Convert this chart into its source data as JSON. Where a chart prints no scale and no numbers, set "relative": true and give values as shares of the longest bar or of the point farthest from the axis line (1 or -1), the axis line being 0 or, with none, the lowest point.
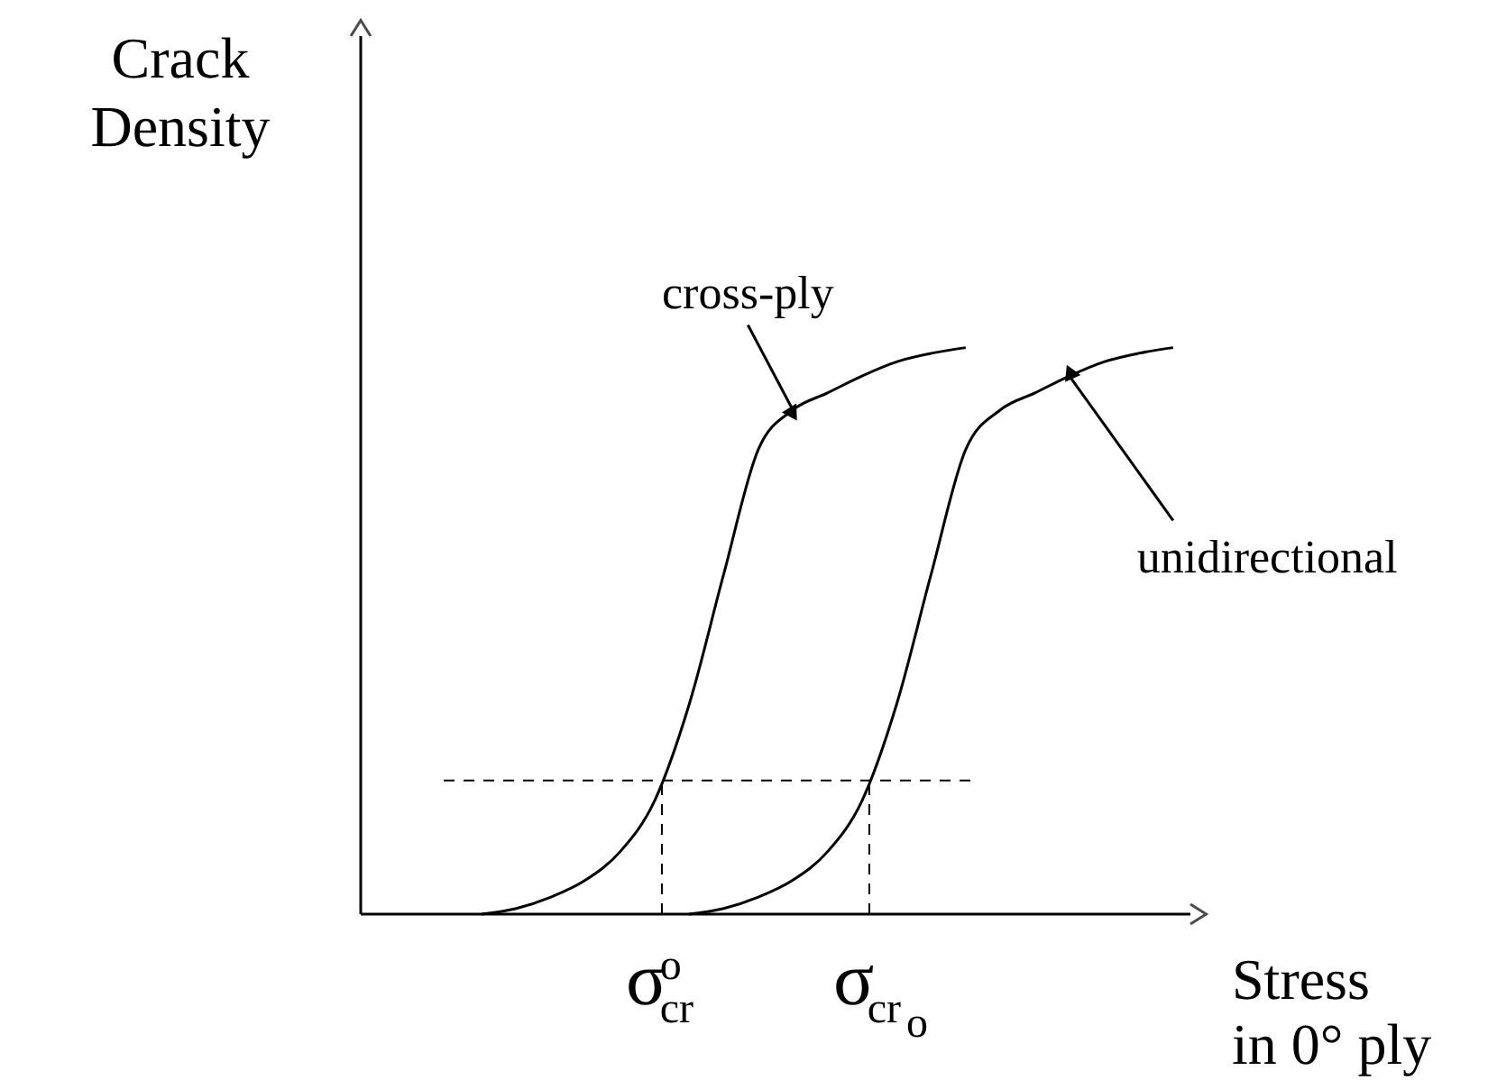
{
  "chart_data": {
    "type": "line",
    "relative": true,
    "xlabel": "Stress\nin 0° ply",
    "ylabel": "Crack\nDensity",
    "marker": "none",
    "line_style": "solid",
    "categories": [
      null,
      null,
      null,
      null,
      null,
      null,
      null,
      null,
      null,
      null,
      null,
      null,
      null,
      null,
      null,
      null,
      null,
      null,
      null,
      null,
      null,
      null,
      null,
      null
    ],
    "series": [
      {
        "color": "#000000",
        "values": [
          null,
          null,
          null,
          0,
          0.01,
          0.03,
          0.06,
          0.11,
          0.2,
          0.37,
          0.6,
          0.82,
          0.89,
          0.92,
          0.95,
          0.975,
          0.99,
          1,
          null,
          null,
          null,
          null,
          null,
          null
        ]
      },
      {
        "color": "#000000",
        "values": [
          null,
          null,
          null,
          null,
          null,
          null,
          null,
          null,
          null,
          0,
          0.01,
          0.03,
          0.06,
          0.11,
          0.2,
          0.37,
          0.6,
          0.82,
          0.89,
          0.92,
          0.95,
          0.975,
          0.99,
          1
        ]
      }
    ],
    "annotations": [
      "cross-ply",
      "unidirectional",
      "σ$_{cr}$$^{o}$",
      "σ$_{cr}$$_{o}$"
    ],
    "ref_lines": [
      {
        "axis": "y",
        "value": 0.236,
        "line_style": "dashed",
        "color": "#000000"
      }
    ]
  }
}
